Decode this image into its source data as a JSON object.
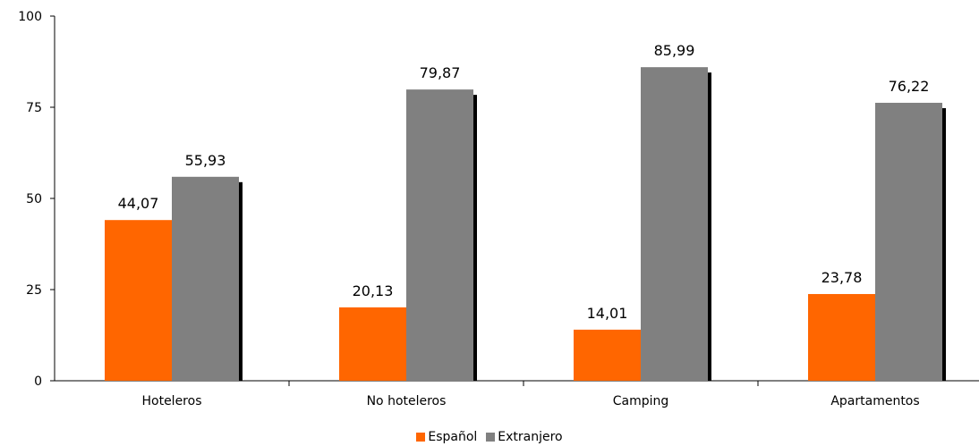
{
  "chart_data": {
    "type": "bar",
    "categories": [
      "Hoteleros",
      "No hoteleros",
      "Camping",
      "Apartamentos"
    ],
    "series": [
      {
        "name": "Español",
        "values": [
          44.07,
          20.13,
          14.01,
          23.78
        ],
        "color": "#ff6600"
      },
      {
        "name": "Extranjero",
        "values": [
          55.93,
          79.87,
          85.99,
          76.22
        ],
        "color": "#808080"
      }
    ],
    "data_labels": [
      [
        "44,07",
        "20,13",
        "14,01",
        "23,78"
      ],
      [
        "55,93",
        "79,87",
        "85,99",
        "76,22"
      ]
    ],
    "ylim": [
      0,
      100
    ],
    "yticks": [
      0,
      25,
      50,
      75,
      100
    ],
    "ytick_labels": [
      "0",
      "25",
      "50",
      "75",
      "100"
    ],
    "grid": false,
    "legend_position": "bottom-center",
    "shadow_color": "#000000"
  }
}
